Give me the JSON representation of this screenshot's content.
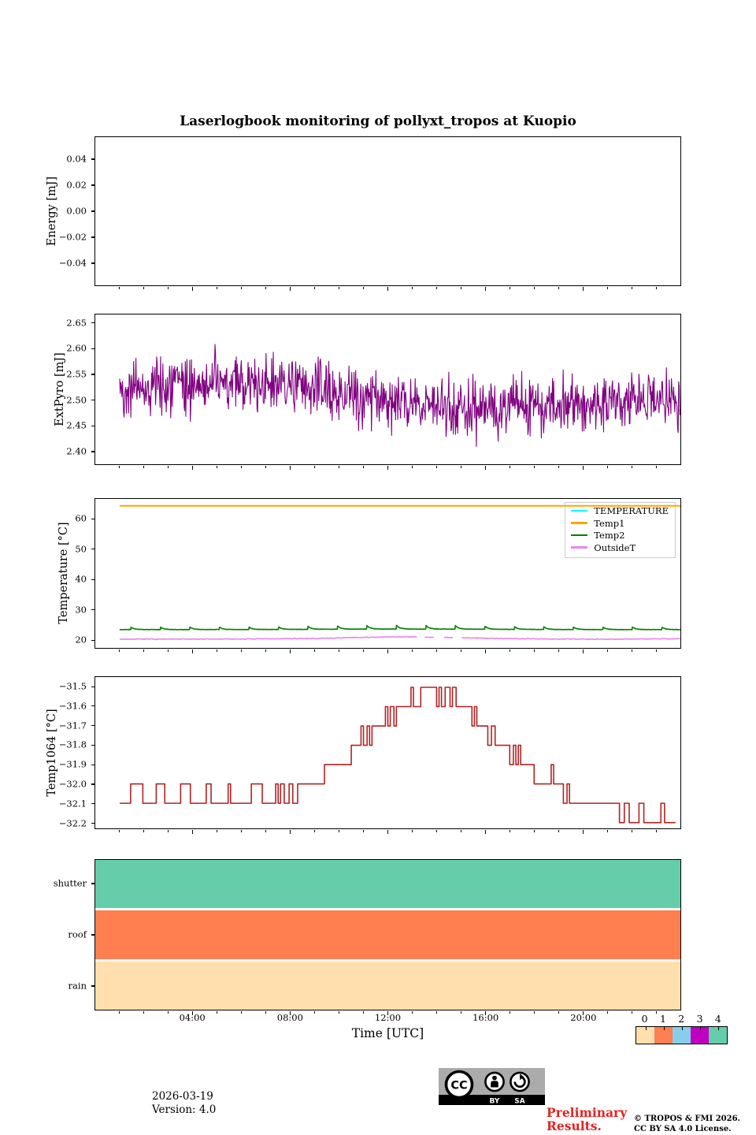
{
  "title": "Laserlogbook monitoring of pollyxt_tropos at Kuopio",
  "time_axis": {
    "label": "Time [UTC]",
    "range_hours": [
      0,
      24
    ],
    "major_ticks": [
      {
        "hour": 4,
        "label": "04:00"
      },
      {
        "hour": 8,
        "label": "08:00"
      },
      {
        "hour": 12,
        "label": "12:00"
      },
      {
        "hour": 16,
        "label": "16:00"
      },
      {
        "hour": 20,
        "label": "20:00"
      }
    ],
    "minor_tick_hours": [
      1,
      2,
      3,
      5,
      6,
      7,
      9,
      10,
      11,
      13,
      14,
      15,
      17,
      18,
      19,
      21,
      22,
      23
    ]
  },
  "colorbar": {
    "labels": [
      "0",
      "1",
      "2",
      "3",
      "4"
    ],
    "colors": [
      "#ffdfad",
      "#ff7f50",
      "#87ceeb",
      "#bf00bf",
      "#66cdaa"
    ]
  },
  "footer": {
    "date": "2026-03-19",
    "version": "Version: 4.0",
    "preliminary_line1": "Preliminary",
    "preliminary_line2": "Results.",
    "preliminary_color": "#e62222",
    "copyright_line1": "© TROPOS & FMI 2026.",
    "copyright_line2": "CC BY SA 4.0 License.",
    "cc_badge": {
      "cc": "CC",
      "by": "BY",
      "sa": "SA"
    }
  },
  "chart_data": [
    {
      "type": "line",
      "ylabel": "Energy [mJ]",
      "ylim": [
        -0.0575,
        0.0575
      ],
      "yticks": {
        "values": [
          0.04,
          0.02,
          0.0,
          -0.02,
          -0.04
        ],
        "labels": [
          "0.04",
          "0.02",
          "0.00",
          "−0.02",
          "−0.04"
        ]
      },
      "series": []
    },
    {
      "type": "line",
      "ylabel": "ExtPyro [mJ]",
      "ylim": [
        2.374,
        2.668
      ],
      "yticks": {
        "values": [
          2.65,
          2.6,
          2.55,
          2.5,
          2.45,
          2.4
        ],
        "labels": [
          "2.65",
          "2.60",
          "2.55",
          "2.50",
          "2.45",
          "2.40"
        ]
      },
      "series": [
        {
          "name": "ExtPyro",
          "color": "#800080",
          "style": "noisy",
          "x_range": [
            1,
            24
          ],
          "n_points": 1000,
          "noise_amplitude": 0.055,
          "seed": 42,
          "clip": [
            2.386,
            2.646
          ],
          "trend_keypoints": [
            [
              1,
              2.52
            ],
            [
              3,
              2.528
            ],
            [
              6,
              2.532
            ],
            [
              8,
              2.528
            ],
            [
              9.5,
              2.518
            ],
            [
              11,
              2.508
            ],
            [
              12.5,
              2.497
            ],
            [
              14,
              2.488
            ],
            [
              16,
              2.484
            ],
            [
              18,
              2.49
            ],
            [
              20,
              2.492
            ],
            [
              22,
              2.496
            ],
            [
              24,
              2.5
            ]
          ]
        }
      ]
    },
    {
      "type": "line",
      "ylabel": "Temperature [°C]",
      "ylim": [
        17.2,
        66.8
      ],
      "yticks": {
        "values": [
          60,
          50,
          40,
          30,
          20
        ],
        "labels": [
          "60",
          "50",
          "40",
          "30",
          "20"
        ]
      },
      "legend": [
        {
          "label": "TEMPERATURE",
          "color": "#00ffff"
        },
        {
          "label": "Temp1",
          "color": "#ffa500"
        },
        {
          "label": "Temp2",
          "color": "#008000"
        },
        {
          "label": "OutsideT",
          "color": "#ee82ee"
        }
      ],
      "series": [
        {
          "name": "Temp1",
          "color": "#ffa500",
          "style": "flat",
          "value": 64.5,
          "x_range": [
            1,
            24
          ],
          "width": 2
        },
        {
          "name": "Temp2",
          "color": "#008000",
          "style": "sawtooth",
          "base": 23.3,
          "bump_amplitude": 0.8,
          "midday_extra": 0.45,
          "period_hours": 1.21,
          "x_range": [
            1,
            24
          ],
          "seed": 3,
          "width": 1.6
        },
        {
          "name": "OutsideT",
          "color": "#ee82ee",
          "style": "noisy",
          "x_range": [
            1,
            24
          ],
          "n_points": 700,
          "noise_amplitude": 0.12,
          "seed": 7,
          "width": 1.6,
          "trend_keypoints": [
            [
              1,
              20.1
            ],
            [
              6,
              20.15
            ],
            [
              9,
              20.35
            ],
            [
              11,
              20.7
            ],
            [
              12.5,
              20.9
            ],
            [
              14,
              20.75
            ],
            [
              15.5,
              20.5
            ],
            [
              17,
              20.3
            ],
            [
              19,
              20.15
            ],
            [
              21,
              20.1
            ],
            [
              24,
              20.25
            ]
          ],
          "gaps": [
            [
              13.2,
              13.5
            ],
            [
              13.9,
              14.3
            ],
            [
              14.7,
              15.0
            ]
          ]
        }
      ]
    },
    {
      "type": "line",
      "ylabel": "Temp1064 [°C]",
      "ylim": [
        -32.23,
        -31.447
      ],
      "yticks": {
        "values": [
          -31.5,
          -31.6,
          -31.7,
          -31.8,
          -31.9,
          -32.0,
          -32.1,
          -32.2
        ],
        "labels": [
          "−31.5",
          "−31.6",
          "−31.7",
          "−31.8",
          "−31.9",
          "−32.0",
          "−32.1",
          "−32.2"
        ]
      },
      "series": [
        {
          "name": "Temp1064",
          "color": "#b22222",
          "style": "steps",
          "width": 1.6,
          "points": [
            [
              1.0,
              -32.1
            ],
            [
              1.45,
              -32.1
            ],
            [
              1.45,
              -32.0
            ],
            [
              1.95,
              -32.0
            ],
            [
              1.95,
              -32.1
            ],
            [
              2.5,
              -32.1
            ],
            [
              2.5,
              -32.0
            ],
            [
              2.85,
              -32.0
            ],
            [
              2.85,
              -32.1
            ],
            [
              3.5,
              -32.1
            ],
            [
              3.5,
              -32.0
            ],
            [
              3.9,
              -32.0
            ],
            [
              3.9,
              -32.1
            ],
            [
              4.55,
              -32.1
            ],
            [
              4.55,
              -32.0
            ],
            [
              4.75,
              -32.0
            ],
            [
              4.75,
              -32.1
            ],
            [
              5.45,
              -32.1
            ],
            [
              5.45,
              -32.0
            ],
            [
              5.55,
              -32.0
            ],
            [
              5.55,
              -32.1
            ],
            [
              6.4,
              -32.1
            ],
            [
              6.4,
              -32.0
            ],
            [
              6.85,
              -32.0
            ],
            [
              6.85,
              -32.1
            ],
            [
              7.4,
              -32.1
            ],
            [
              7.4,
              -32.0
            ],
            [
              7.5,
              -32.0
            ],
            [
              7.5,
              -32.1
            ],
            [
              7.6,
              -32.1
            ],
            [
              7.6,
              -32.0
            ],
            [
              7.75,
              -32.0
            ],
            [
              7.75,
              -32.1
            ],
            [
              7.95,
              -32.1
            ],
            [
              7.95,
              -32.0
            ],
            [
              8.1,
              -32.0
            ],
            [
              8.1,
              -32.1
            ],
            [
              8.3,
              -32.1
            ],
            [
              8.3,
              -32.0
            ],
            [
              9.4,
              -32.0
            ],
            [
              9.4,
              -31.9
            ],
            [
              10.5,
              -31.9
            ],
            [
              10.5,
              -31.8
            ],
            [
              10.9,
              -31.8
            ],
            [
              10.9,
              -31.7
            ],
            [
              11.0,
              -31.7
            ],
            [
              11.0,
              -31.8
            ],
            [
              11.15,
              -31.8
            ],
            [
              11.15,
              -31.7
            ],
            [
              11.25,
              -31.7
            ],
            [
              11.25,
              -31.8
            ],
            [
              11.35,
              -31.8
            ],
            [
              11.35,
              -31.7
            ],
            [
              11.9,
              -31.7
            ],
            [
              11.9,
              -31.6
            ],
            [
              12.0,
              -31.6
            ],
            [
              12.0,
              -31.7
            ],
            [
              12.1,
              -31.7
            ],
            [
              12.1,
              -31.6
            ],
            [
              12.25,
              -31.6
            ],
            [
              12.25,
              -31.7
            ],
            [
              12.35,
              -31.7
            ],
            [
              12.35,
              -31.6
            ],
            [
              12.95,
              -31.6
            ],
            [
              12.95,
              -31.5
            ],
            [
              13.05,
              -31.5
            ],
            [
              13.05,
              -31.6
            ],
            [
              13.35,
              -31.6
            ],
            [
              13.35,
              -31.5
            ],
            [
              14.0,
              -31.5
            ],
            [
              14.0,
              -31.6
            ],
            [
              14.1,
              -31.6
            ],
            [
              14.1,
              -31.5
            ],
            [
              14.2,
              -31.5
            ],
            [
              14.2,
              -31.6
            ],
            [
              14.35,
              -31.6
            ],
            [
              14.35,
              -31.5
            ],
            [
              14.55,
              -31.5
            ],
            [
              14.55,
              -31.6
            ],
            [
              14.65,
              -31.6
            ],
            [
              14.65,
              -31.5
            ],
            [
              14.8,
              -31.5
            ],
            [
              14.8,
              -31.6
            ],
            [
              15.45,
              -31.6
            ],
            [
              15.45,
              -31.7
            ],
            [
              15.55,
              -31.7
            ],
            [
              15.55,
              -31.6
            ],
            [
              15.65,
              -31.6
            ],
            [
              15.65,
              -31.7
            ],
            [
              16.1,
              -31.7
            ],
            [
              16.1,
              -31.8
            ],
            [
              16.25,
              -31.8
            ],
            [
              16.25,
              -31.7
            ],
            [
              16.4,
              -31.7
            ],
            [
              16.4,
              -31.8
            ],
            [
              17.0,
              -31.8
            ],
            [
              17.0,
              -31.9
            ],
            [
              17.15,
              -31.9
            ],
            [
              17.15,
              -31.8
            ],
            [
              17.25,
              -31.8
            ],
            [
              17.25,
              -31.9
            ],
            [
              17.35,
              -31.9
            ],
            [
              17.35,
              -31.8
            ],
            [
              17.45,
              -31.8
            ],
            [
              17.45,
              -31.9
            ],
            [
              18.0,
              -31.9
            ],
            [
              18.0,
              -32.0
            ],
            [
              18.7,
              -32.0
            ],
            [
              18.7,
              -31.9
            ],
            [
              18.8,
              -31.9
            ],
            [
              18.8,
              -32.0
            ],
            [
              19.2,
              -32.0
            ],
            [
              19.2,
              -32.1
            ],
            [
              19.35,
              -32.1
            ],
            [
              19.35,
              -32.0
            ],
            [
              19.45,
              -32.0
            ],
            [
              19.45,
              -32.1
            ],
            [
              21.5,
              -32.1
            ],
            [
              21.5,
              -32.2
            ],
            [
              21.7,
              -32.2
            ],
            [
              21.7,
              -32.1
            ],
            [
              21.9,
              -32.1
            ],
            [
              21.9,
              -32.2
            ],
            [
              22.3,
              -32.2
            ],
            [
              22.3,
              -32.1
            ],
            [
              22.5,
              -32.1
            ],
            [
              22.5,
              -32.2
            ],
            [
              23.2,
              -32.2
            ],
            [
              23.2,
              -32.1
            ],
            [
              23.35,
              -32.1
            ],
            [
              23.35,
              -32.2
            ],
            [
              23.8,
              -32.2
            ]
          ]
        }
      ]
    },
    {
      "type": "status-bars",
      "rows": [
        {
          "label": "shutter",
          "value": 4,
          "color": "#66cdaa"
        },
        {
          "label": "roof",
          "value": 1,
          "color": "#ff7f50"
        },
        {
          "label": "rain",
          "value": 0,
          "color": "#ffdfad"
        }
      ]
    }
  ]
}
